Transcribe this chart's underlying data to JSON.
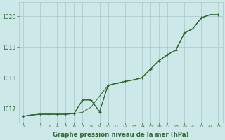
{
  "title": "Graphe pression niveau de la mer (hPa)",
  "background_color": "#cce8e8",
  "grid_color": "#aac8c8",
  "line_color": "#2d6a2d",
  "text_color": "#2d6a2d",
  "ylim": [
    1016.55,
    1020.45
  ],
  "xlim": [
    -0.5,
    23.5
  ],
  "yticks": [
    1017,
    1018,
    1019,
    1020
  ],
  "ylabel_fontsize": 6,
  "xlabel_fontsize": 6.5,
  "s1_x": [
    0,
    1,
    2,
    3,
    4,
    5,
    6,
    7,
    8,
    9,
    10,
    11,
    12,
    13,
    14,
    15,
    16,
    17,
    18,
    19,
    20,
    21,
    22,
    23
  ],
  "s1_y": [
    1016.75,
    1016.8,
    1016.82,
    1016.82,
    1016.82,
    1016.82,
    1016.84,
    1016.88,
    1017.05,
    1017.4,
    1017.75,
    1017.82,
    1017.88,
    1017.93,
    1018.0,
    1018.28,
    1018.55,
    1018.75,
    1018.9,
    1019.45,
    1019.6,
    1019.95,
    1020.05,
    1020.05
  ],
  "s2_x": [
    0,
    1,
    2,
    3,
    4,
    5,
    6,
    7,
    8,
    9,
    10,
    11,
    12,
    13,
    14,
    15,
    16,
    17,
    18,
    19,
    20,
    21,
    22,
    23
  ],
  "s2_y": [
    1016.75,
    1016.8,
    1016.82,
    1016.82,
    1016.82,
    1016.82,
    1016.84,
    1017.28,
    1017.28,
    1016.9,
    1017.75,
    1017.82,
    1017.88,
    1017.93,
    1018.0,
    1018.28,
    1018.55,
    1018.75,
    1018.9,
    1019.45,
    1019.6,
    1019.95,
    1020.05,
    1020.05
  ],
  "s3_x": [
    0,
    2,
    3,
    4,
    5,
    6,
    7,
    8,
    9,
    10,
    11,
    12,
    13,
    14,
    15,
    16,
    17,
    18,
    19,
    20,
    21,
    22,
    23
  ],
  "s3_y": [
    1016.75,
    1016.82,
    1016.82,
    1016.82,
    1016.82,
    1016.84,
    1017.28,
    1017.28,
    1016.9,
    1017.75,
    1017.82,
    1017.88,
    1017.93,
    1018.0,
    1018.28,
    1018.55,
    1018.75,
    1018.9,
    1019.45,
    1019.6,
    1019.95,
    1020.05,
    1020.05
  ]
}
